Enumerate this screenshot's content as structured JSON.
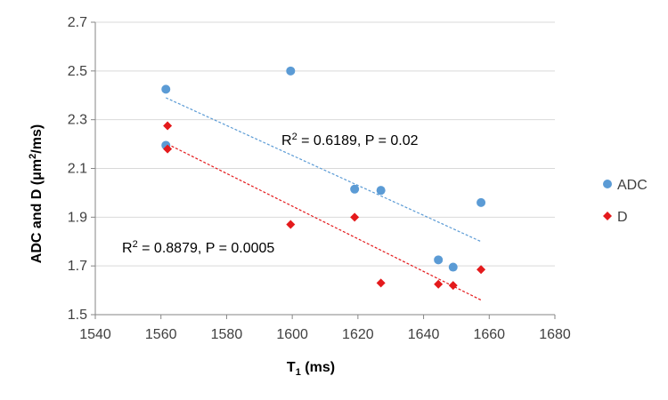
{
  "chart_data": {
    "type": "scatter",
    "title": "",
    "xlabel_main": "T",
    "xlabel_sub": "1",
    "xlabel_unit": " (ms)",
    "ylabel_pre": "ADC and D (μm",
    "ylabel_sup": "2",
    "ylabel_post": "/ms)",
    "xlim": [
      1540,
      1680
    ],
    "ylim": [
      1.5,
      2.7
    ],
    "x_ticks": [
      "1540",
      "1560",
      "1580",
      "1600",
      "1620",
      "1640",
      "1660",
      "1680"
    ],
    "y_ticks": [
      "1.5",
      "1.7",
      "1.9",
      "2.1",
      "2.3",
      "2.5",
      "2.7"
    ],
    "grid": "horizontal",
    "legend_position": "right",
    "series": [
      {
        "name": "ADC",
        "marker": "circle",
        "color": "#5B9BD5",
        "points": [
          {
            "x": 1561.5,
            "y": 2.425
          },
          {
            "x": 1561.5,
            "y": 2.195
          },
          {
            "x": 1599.5,
            "y": 2.5
          },
          {
            "x": 1619,
            "y": 2.015
          },
          {
            "x": 1627,
            "y": 2.01
          },
          {
            "x": 1644.5,
            "y": 1.725
          },
          {
            "x": 1649,
            "y": 1.695
          },
          {
            "x": 1657.5,
            "y": 1.96
          }
        ],
        "trendline": {
          "x1": 1561.5,
          "y1": 2.39,
          "x2": 1657.5,
          "y2": 1.8,
          "color": "#5B9BD5"
        }
      },
      {
        "name": "D",
        "marker": "diamond",
        "color": "#E41A1C",
        "points": [
          {
            "x": 1562,
            "y": 2.275
          },
          {
            "x": 1562,
            "y": 2.18
          },
          {
            "x": 1599.5,
            "y": 1.87
          },
          {
            "x": 1619,
            "y": 1.9
          },
          {
            "x": 1627,
            "y": 1.63
          },
          {
            "x": 1644.5,
            "y": 1.625
          },
          {
            "x": 1649,
            "y": 1.62
          },
          {
            "x": 1657.5,
            "y": 1.685
          }
        ],
        "trendline": {
          "x1": 1562,
          "y1": 2.2,
          "x2": 1657.5,
          "y2": 1.56,
          "color": "#E41A1C"
        }
      }
    ],
    "annotations": [
      {
        "series": "ADC",
        "r2_prefix": "R",
        "r2_sup": "2",
        "text": " = 0.6189, P = 0.02"
      },
      {
        "series": "D",
        "r2_prefix": "R",
        "r2_sup": "2",
        "text": " = 0.8879, P = 0.0005"
      }
    ]
  }
}
